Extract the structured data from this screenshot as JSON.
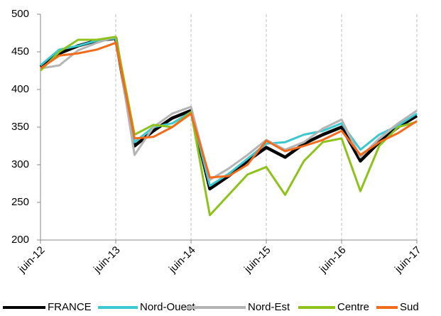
{
  "chart_data": {
    "type": "line",
    "categories": [
      "juin-12",
      null,
      null,
      null,
      "juin-13",
      null,
      null,
      null,
      "juin-14",
      null,
      null,
      null,
      "juin-15",
      null,
      null,
      null,
      "juin-16",
      null,
      null,
      null,
      "juin-17"
    ],
    "series": [
      {
        "name": "FRANCE",
        "color": "#000000",
        "values": [
          430,
          448,
          458,
          465,
          468,
          325,
          345,
          362,
          372,
          268,
          285,
          305,
          323,
          310,
          328,
          340,
          350,
          305,
          330,
          350,
          365
        ]
      },
      {
        "name": "Nord-Ouest",
        "color": "#3cc8d0",
        "values": [
          432,
          453,
          458,
          465,
          468,
          330,
          350,
          355,
          370,
          272,
          288,
          308,
          328,
          330,
          340,
          345,
          355,
          320,
          340,
          352,
          368
        ]
      },
      {
        "name": "Nord-Est",
        "color": "#b4b4b4",
        "values": [
          428,
          432,
          452,
          462,
          470,
          313,
          350,
          368,
          377,
          280,
          295,
          313,
          333,
          320,
          330,
          348,
          360,
          310,
          335,
          355,
          372
        ]
      },
      {
        "name": "Centre",
        "color": "#8cc21a",
        "values": [
          425,
          450,
          466,
          466,
          470,
          340,
          353,
          350,
          370,
          233,
          260,
          287,
          297,
          260,
          305,
          330,
          335,
          265,
          325,
          350,
          357
        ]
      },
      {
        "name": "Sud",
        "color": "#f26b1d",
        "values": [
          428,
          445,
          448,
          453,
          462,
          335,
          337,
          350,
          368,
          283,
          285,
          300,
          332,
          318,
          325,
          333,
          345,
          313,
          330,
          342,
          358
        ]
      }
    ],
    "ylim": [
      200,
      500
    ],
    "yticks": [
      200,
      250,
      300,
      350,
      400,
      450,
      500
    ],
    "grid": "x-dashed",
    "legend": "bottom"
  }
}
